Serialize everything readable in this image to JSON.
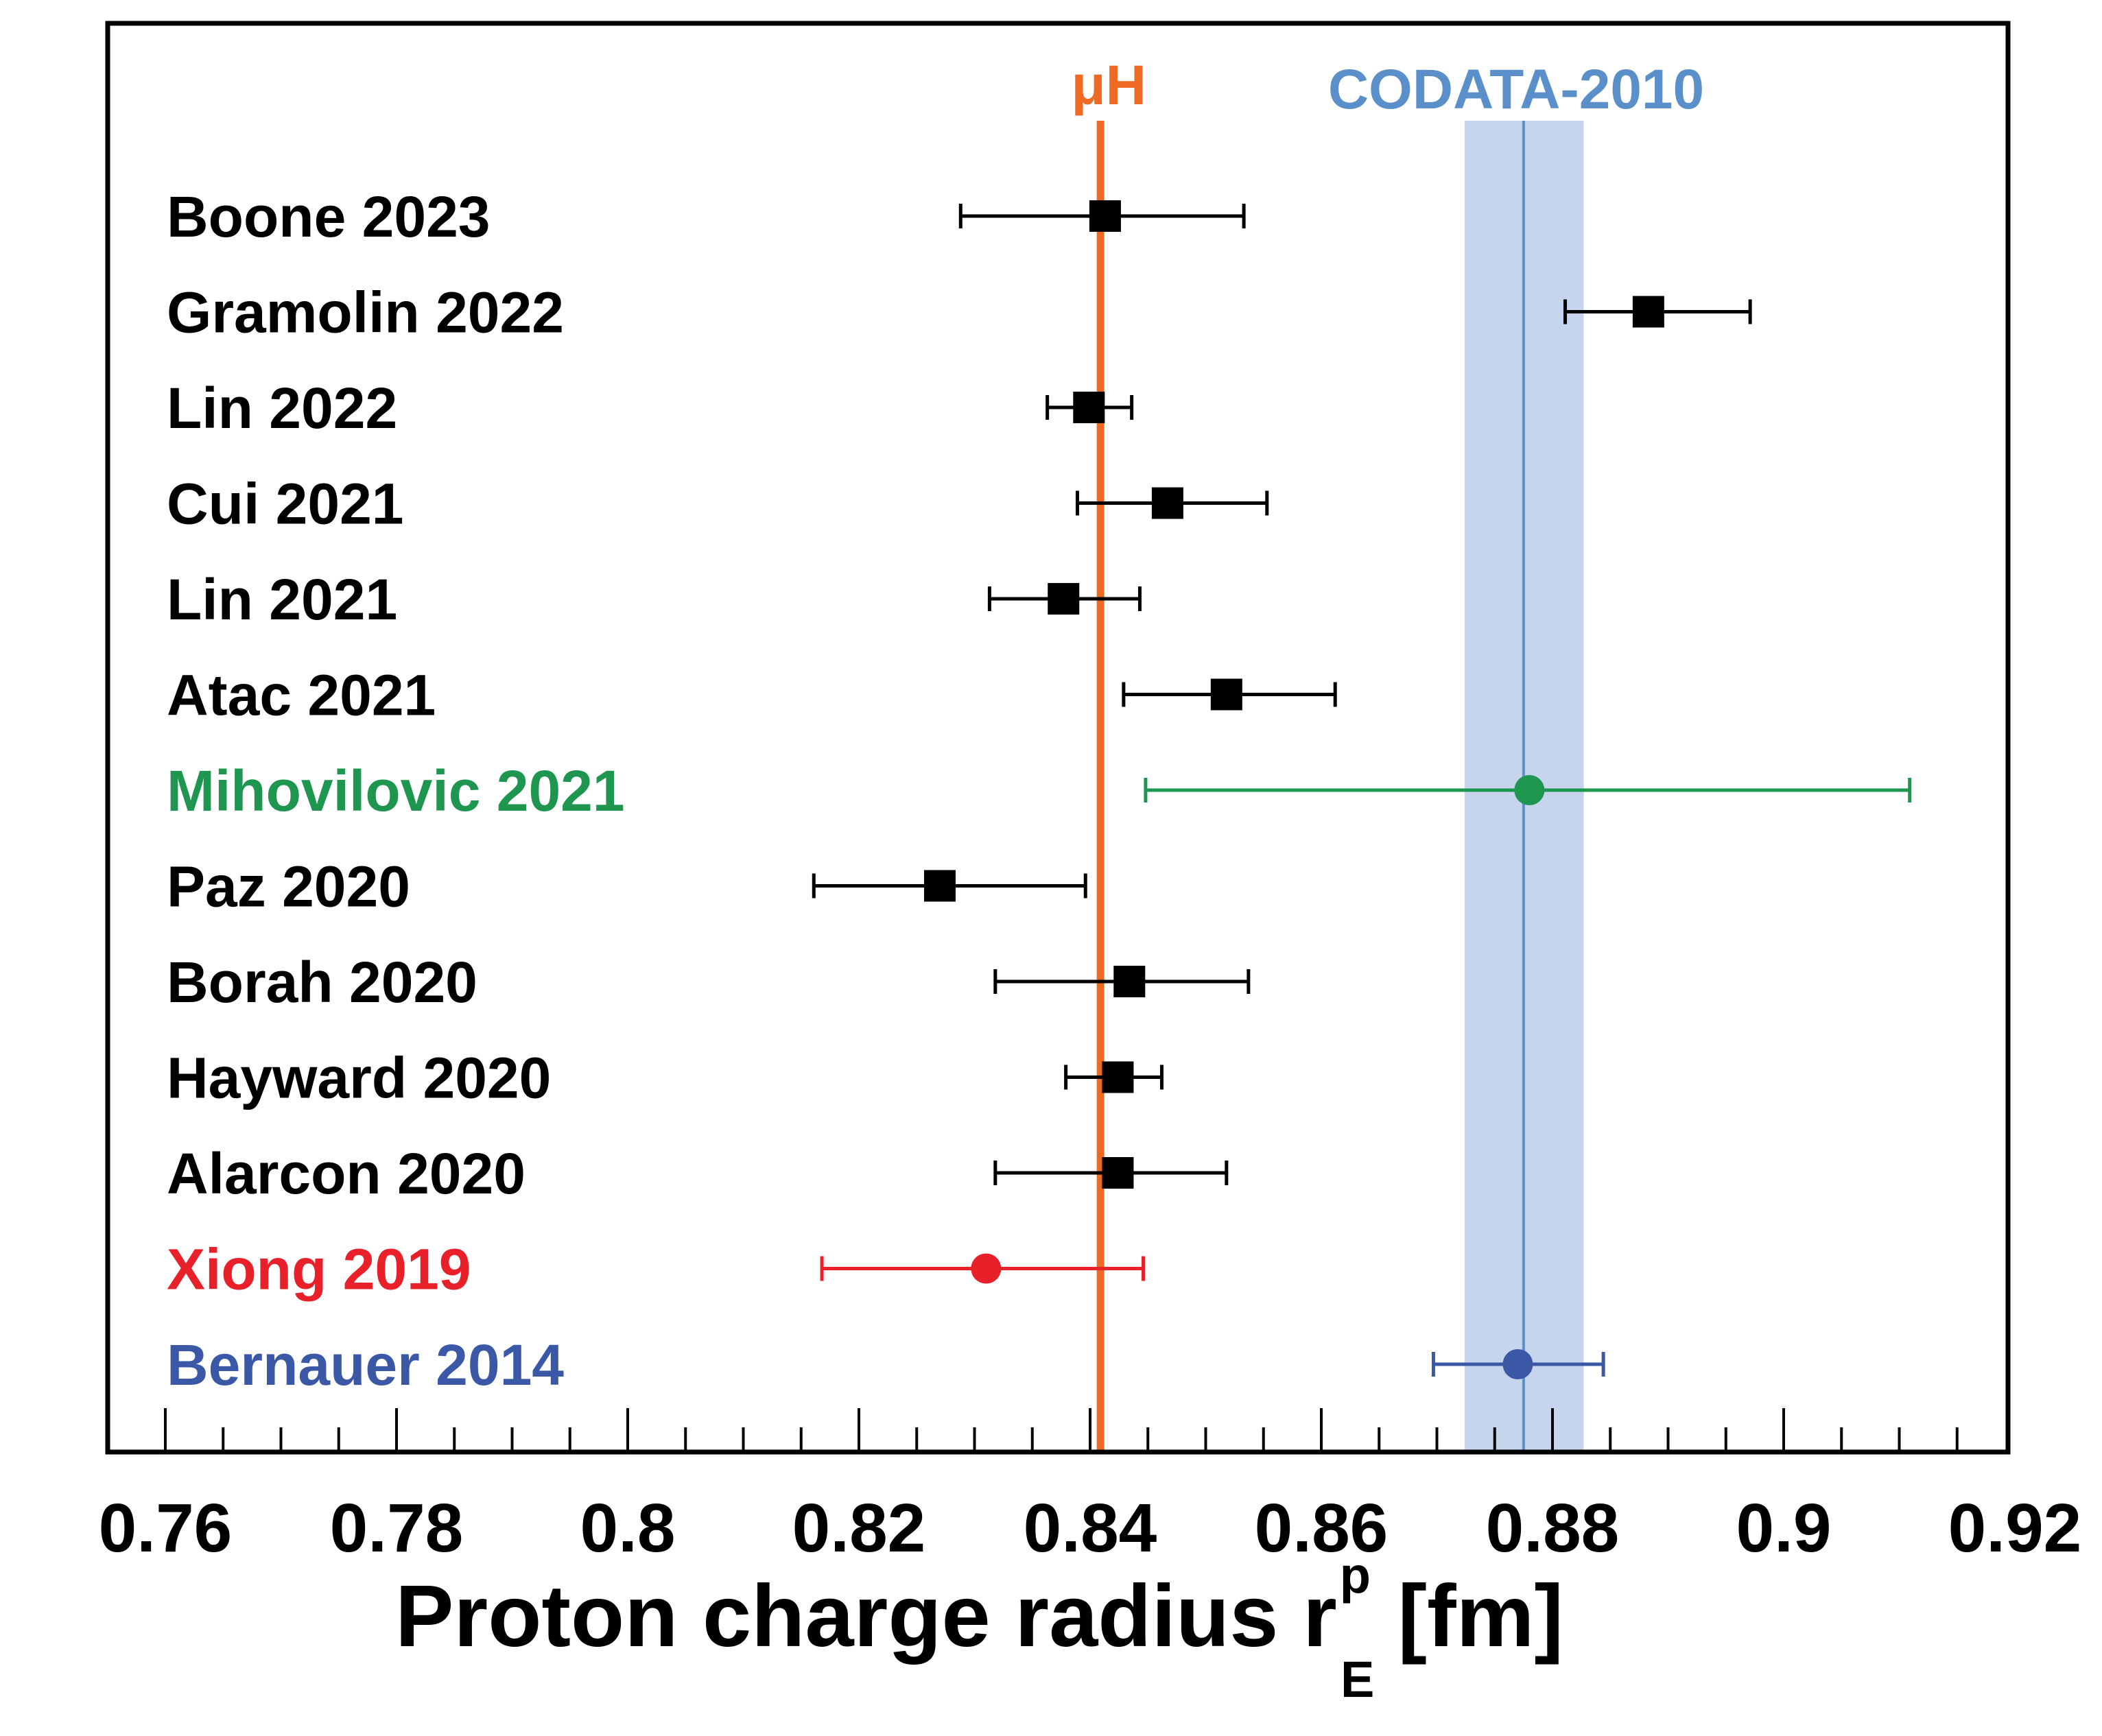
{
  "chart_data": {
    "type": "forest",
    "xlim": [
      0.76,
      0.92
    ],
    "xlabel": {
      "main": "Proton charge radius r",
      "sup": "p",
      "sub": "E",
      "unit": "[fm]"
    },
    "x_ticks": [
      "0.76",
      "0.78",
      "0.8",
      "0.82",
      "0.84",
      "0.86",
      "0.88",
      "0.9",
      "0.92"
    ],
    "x_tick_values": [
      0.76,
      0.78,
      0.8,
      0.82,
      0.84,
      0.86,
      0.88,
      0.9,
      0.92
    ],
    "minor_tick_step": 0.005,
    "reference_lines": [
      {
        "label": "μH",
        "value": 0.8409,
        "color": "#ee6a22"
      },
      {
        "label": "CODATA-2010",
        "value": 0.8775,
        "band": [
          0.8724,
          0.8827
        ],
        "color": "#5b8fca",
        "band_color": "#c6d4ee"
      }
    ],
    "measurements": [
      {
        "label": "Boone 2023",
        "value": 0.8413,
        "err_low": 0.8288,
        "err_high": 0.8533,
        "marker": "square",
        "color": "#000000"
      },
      {
        "label": "Gramolin 2022",
        "value": 0.8883,
        "err_low": 0.8811,
        "err_high": 0.8971,
        "marker": "square",
        "color": "#000000"
      },
      {
        "label": "Lin 2022",
        "value": 0.8399,
        "err_low": 0.8363,
        "err_high": 0.8436,
        "marker": "square",
        "color": "#000000"
      },
      {
        "label": "Cui 2021",
        "value": 0.8467,
        "err_low": 0.8389,
        "err_high": 0.8553,
        "marker": "square",
        "color": "#000000"
      },
      {
        "label": "Lin 2021",
        "value": 0.8377,
        "err_low": 0.8313,
        "err_high": 0.8443,
        "marker": "square",
        "color": "#000000"
      },
      {
        "label": "Atac 2021",
        "value": 0.8518,
        "err_low": 0.8429,
        "err_high": 0.8612,
        "marker": "square",
        "color": "#000000"
      },
      {
        "label": "Mihovilovic 2021",
        "value": 0.878,
        "err_low": 0.8448,
        "err_high": 0.9109,
        "marker": "circle",
        "color": "#1e9650"
      },
      {
        "label": "Paz 2020",
        "value": 0.827,
        "err_low": 0.8161,
        "err_high": 0.8396,
        "marker": "square",
        "color": "#000000"
      },
      {
        "label": "Borah 2020",
        "value": 0.8434,
        "err_low": 0.8318,
        "err_high": 0.8537,
        "marker": "square",
        "color": "#000000"
      },
      {
        "label": "Hayward 2020",
        "value": 0.8424,
        "err_low": 0.8379,
        "err_high": 0.8462,
        "marker": "square",
        "color": "#000000"
      },
      {
        "label": "Alarcon 2020",
        "value": 0.8424,
        "err_low": 0.8318,
        "err_high": 0.8518,
        "marker": "square",
        "color": "#000000"
      },
      {
        "label": "Xiong 2019",
        "value": 0.831,
        "err_low": 0.8168,
        "err_high": 0.8446,
        "marker": "circle",
        "color": "#e8202a"
      },
      {
        "label": "Bernauer 2014",
        "value": 0.877,
        "err_low": 0.8697,
        "err_high": 0.8844,
        "marker": "circle",
        "color": "#3a58a6"
      }
    ]
  }
}
